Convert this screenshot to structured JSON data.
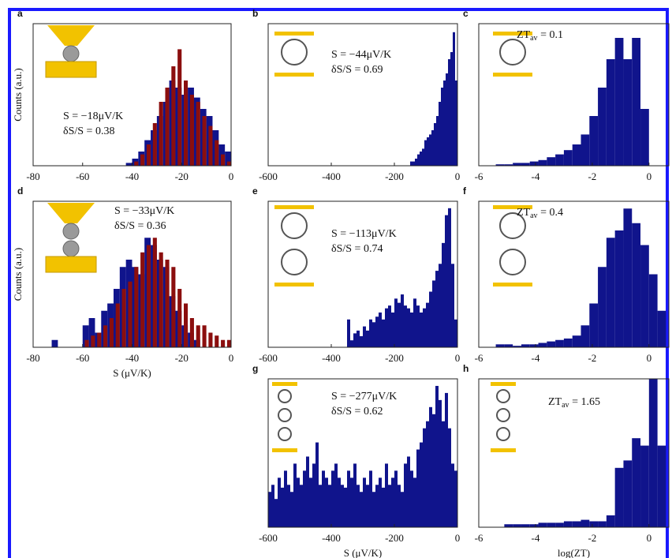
{
  "chart_data": [
    {
      "type": "histogram",
      "label": "a",
      "ylabel": "Counts (a.u.)",
      "annotations": [
        "S = −18μV/K",
        "δS/S = 0.38"
      ],
      "bins": [
        -45,
        -42.5,
        -40,
        -37.5,
        -35,
        -32.5,
        -30,
        -27.5,
        -25,
        -22.5,
        -20,
        -17.5,
        -15,
        -12.5,
        -10,
        -7.5,
        -5,
        -2.5,
        0
      ],
      "series": [
        {
          "color": "#10148c",
          "values": [
            0,
            2,
            5,
            10,
            18,
            25,
            35,
            45,
            60,
            55,
            50,
            55,
            48,
            40,
            35,
            25,
            15,
            10
          ]
        },
        {
          "color": "#8b0e0e",
          "values": [
            0,
            0,
            3,
            8,
            15,
            30,
            45,
            55,
            70,
            82,
            60,
            50,
            45,
            35,
            28,
            18,
            8,
            3
          ]
        }
      ],
      "xlim": [
        -80,
        0
      ],
      "xticks": [
        -80,
        -60,
        -40,
        -20,
        0
      ],
      "ylim": [
        0,
        100
      ]
    },
    {
      "type": "histogram",
      "label": "b",
      "annotations": [
        "S = −44μV/K",
        "δS/S = 0.69"
      ],
      "bins": [
        -150,
        -142.5,
        -135,
        -127.5,
        -120,
        -112.5,
        -105,
        -97.5,
        -90,
        -82.5,
        -75,
        -67.5,
        -60,
        -52.5,
        -45,
        -37.5,
        -30,
        -22.5,
        -15,
        -7.5,
        0
      ],
      "series": [
        {
          "color": "#10148c",
          "values": [
            3,
            3,
            5,
            8,
            10,
            12,
            18,
            20,
            22,
            25,
            30,
            35,
            45,
            55,
            60,
            65,
            75,
            80,
            94,
            60
          ]
        }
      ],
      "xlim": [
        -600,
        0
      ],
      "xticks": [
        -600,
        -400,
        -200,
        0
      ],
      "ylim": [
        0,
        100
      ]
    },
    {
      "type": "histogram",
      "label": "c",
      "zt": {
        "base": "ZT",
        "sub": "av",
        "value": " = 0.1"
      },
      "bins": [
        -6,
        -5.7,
        -5.4,
        -5.1,
        -4.8,
        -4.5,
        -4.2,
        -3.9,
        -3.6,
        -3.3,
        -3,
        -2.7,
        -2.4,
        -2.1,
        -1.8,
        -1.5,
        -1.2,
        -0.9,
        -0.6,
        -0.3,
        0
      ],
      "series": [
        {
          "color": "#10148c",
          "values": [
            0,
            0,
            1,
            1,
            2,
            2,
            3,
            4,
            6,
            8,
            11,
            15,
            22,
            35,
            55,
            75,
            90,
            75,
            90,
            40
          ]
        }
      ],
      "xlim": [
        -6,
        0.7
      ],
      "xticks": [
        -6,
        -4,
        -2,
        0
      ],
      "ylim": [
        0,
        100
      ]
    },
    {
      "type": "histogram",
      "label": "d",
      "ylabel": "Counts (a.u.)",
      "xlabel": "S (μV/K)",
      "annotations": [
        "S = −33μV/K",
        "δS/S = 0.36"
      ],
      "bins": [
        -75,
        -72.5,
        -70,
        -67.5,
        -65,
        -62.5,
        -60,
        -57.5,
        -55,
        -52.5,
        -50,
        -47.5,
        -45,
        -42.5,
        -40,
        -37.5,
        -35,
        -32.5,
        -30,
        -27.5,
        -25,
        -22.5,
        -20,
        -17.5,
        -15,
        -12.5,
        -10,
        -7.5,
        -5,
        -2.5,
        0
      ],
      "series": [
        {
          "color": "#10148c",
          "values": [
            0,
            5,
            0,
            0,
            0,
            0,
            15,
            20,
            10,
            25,
            30,
            40,
            55,
            60,
            55,
            50,
            75,
            70,
            60,
            55,
            35,
            25,
            15,
            10,
            5,
            0,
            0,
            0,
            0,
            0
          ]
        },
        {
          "color": "#8b0e0e",
          "values": [
            0,
            0,
            0,
            0,
            0,
            0,
            5,
            8,
            10,
            15,
            20,
            30,
            40,
            45,
            55,
            65,
            70,
            75,
            65,
            60,
            55,
            40,
            30,
            20,
            15,
            15,
            10,
            8,
            5,
            5
          ]
        }
      ],
      "xlim": [
        -80,
        0
      ],
      "xticks": [
        -80,
        -60,
        -40,
        -20,
        0
      ],
      "ylim": [
        0,
        100
      ]
    },
    {
      "type": "histogram",
      "label": "e",
      "annotations": [
        "S = −113μV/K",
        "δS/S = 0.74"
      ],
      "bins": [
        -350,
        -340,
        -330,
        -320,
        -310,
        -300,
        -290,
        -280,
        -270,
        -260,
        -250,
        -240,
        -230,
        -220,
        -210,
        -200,
        -190,
        -180,
        -170,
        -160,
        -150,
        -140,
        -130,
        -120,
        -110,
        -100,
        -90,
        -80,
        -70,
        -60,
        -50,
        -40,
        -30,
        -20,
        -10,
        0
      ],
      "series": [
        {
          "color": "#10148c",
          "values": [
            20,
            5,
            10,
            12,
            8,
            15,
            12,
            20,
            18,
            22,
            25,
            20,
            28,
            30,
            25,
            35,
            32,
            38,
            30,
            28,
            25,
            35,
            30,
            25,
            28,
            32,
            40,
            48,
            55,
            60,
            75,
            95,
            100,
            60,
            20
          ]
        }
      ],
      "xlim": [
        -600,
        0
      ],
      "xticks": [
        -600,
        -400,
        -200,
        0
      ],
      "ylim": [
        0,
        105
      ]
    },
    {
      "type": "histogram",
      "label": "f",
      "zt": {
        "base": "ZT",
        "sub": "av",
        "value": " = 0.4"
      },
      "bins": [
        -6,
        -5.7,
        -5.4,
        -5.1,
        -4.8,
        -4.5,
        -4.2,
        -3.9,
        -3.6,
        -3.3,
        -3,
        -2.7,
        -2.4,
        -2.1,
        -1.8,
        -1.5,
        -1.2,
        -0.9,
        -0.6,
        -0.3,
        0,
        0.3,
        0.6
      ],
      "series": [
        {
          "color": "#10148c",
          "values": [
            0,
            0,
            2,
            2,
            1,
            2,
            2,
            3,
            4,
            5,
            6,
            8,
            15,
            30,
            55,
            75,
            80,
            95,
            85,
            70,
            50,
            25
          ]
        }
      ],
      "xlim": [
        -6,
        0.7
      ],
      "xticks": [
        -6,
        -4,
        -2,
        0
      ],
      "ylim": [
        0,
        100
      ]
    },
    {
      "type": "histogram",
      "label": "g",
      "xlabel": "S (μV/K)",
      "annotations": [
        "S = −277μV/K",
        "δS/S = 0.62"
      ],
      "bins": [
        -600,
        -590,
        -580,
        -570,
        -560,
        -550,
        -540,
        -530,
        -520,
        -510,
        -500,
        -490,
        -480,
        -470,
        -460,
        -450,
        -440,
        -430,
        -420,
        -410,
        -400,
        -390,
        -380,
        -370,
        -360,
        -350,
        -340,
        -330,
        -320,
        -310,
        -300,
        -290,
        -280,
        -270,
        -260,
        -250,
        -240,
        -230,
        -220,
        -210,
        -200,
        -190,
        -180,
        -170,
        -160,
        -150,
        -140,
        -130,
        -120,
        -110,
        -100,
        -90,
        -80,
        -70,
        -60,
        -50,
        -40,
        -30,
        -20,
        -10,
        0
      ],
      "series": [
        {
          "color": "#10148c",
          "values": [
            25,
            30,
            20,
            35,
            28,
            40,
            30,
            25,
            45,
            35,
            30,
            40,
            50,
            35,
            45,
            60,
            30,
            40,
            35,
            30,
            40,
            45,
            35,
            30,
            28,
            40,
            35,
            45,
            30,
            25,
            35,
            30,
            40,
            25,
            30,
            35,
            28,
            45,
            30,
            35,
            40,
            30,
            25,
            45,
            50,
            40,
            35,
            55,
            60,
            70,
            75,
            85,
            80,
            100,
            90,
            75,
            95,
            70,
            45,
            40
          ]
        }
      ],
      "xlim": [
        -600,
        0
      ],
      "xticks": [
        -600,
        -400,
        -200,
        0
      ],
      "ylim": [
        0,
        105
      ]
    },
    {
      "type": "histogram",
      "label": "h",
      "xlabel": "log(ZT)",
      "zt": {
        "base": "ZT",
        "sub": "av",
        "value": " = 1.65"
      },
      "bins": [
        -6,
        -5.7,
        -5.4,
        -5.1,
        -4.8,
        -4.5,
        -4.2,
        -3.9,
        -3.6,
        -3.3,
        -3,
        -2.7,
        -2.4,
        -2.1,
        -1.8,
        -1.5,
        -1.2,
        -0.9,
        -0.6,
        -0.3,
        0,
        0.3,
        0.6
      ],
      "series": [
        {
          "color": "#10148c",
          "values": [
            0,
            0,
            0,
            2,
            2,
            2,
            2,
            3,
            3,
            3,
            4,
            4,
            5,
            4,
            4,
            8,
            40,
            45,
            60,
            55,
            100,
            55
          ]
        }
      ],
      "xlim": [
        -6,
        0.7
      ],
      "xticks": [
        -6,
        -4,
        -2,
        0
      ],
      "ylim": [
        0,
        100
      ]
    }
  ]
}
